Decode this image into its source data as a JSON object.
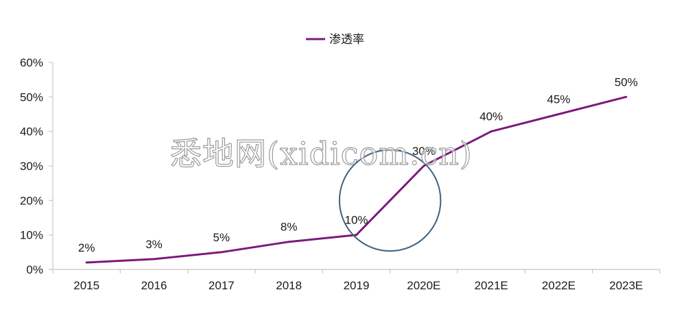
{
  "chart_data": {
    "type": "line",
    "categories": [
      "2015",
      "2016",
      "2017",
      "2018",
      "2019",
      "2020E",
      "2021E",
      "2022E",
      "2023E"
    ],
    "series": [
      {
        "name": "渗透率",
        "values": [
          2,
          3,
          5,
          8,
          10,
          30,
          40,
          45,
          50
        ],
        "labels": [
          "2%",
          "3%",
          "5%",
          "8%",
          "10%",
          "30%",
          "40%",
          "45%",
          "50%"
        ],
        "color": "#7b1a7b"
      }
    ],
    "y_ticks": [
      "0%",
      "10%",
      "20%",
      "30%",
      "40%",
      "50%",
      "60%"
    ],
    "ylim": [
      0,
      60
    ],
    "legend_position": "top-center",
    "grid": false,
    "annotation": {
      "shape": "circle",
      "color": "#3d6080",
      "around": [
        "2019",
        "2020E"
      ]
    }
  },
  "watermark": {
    "text": "悉地网(xidicom.cn)"
  }
}
